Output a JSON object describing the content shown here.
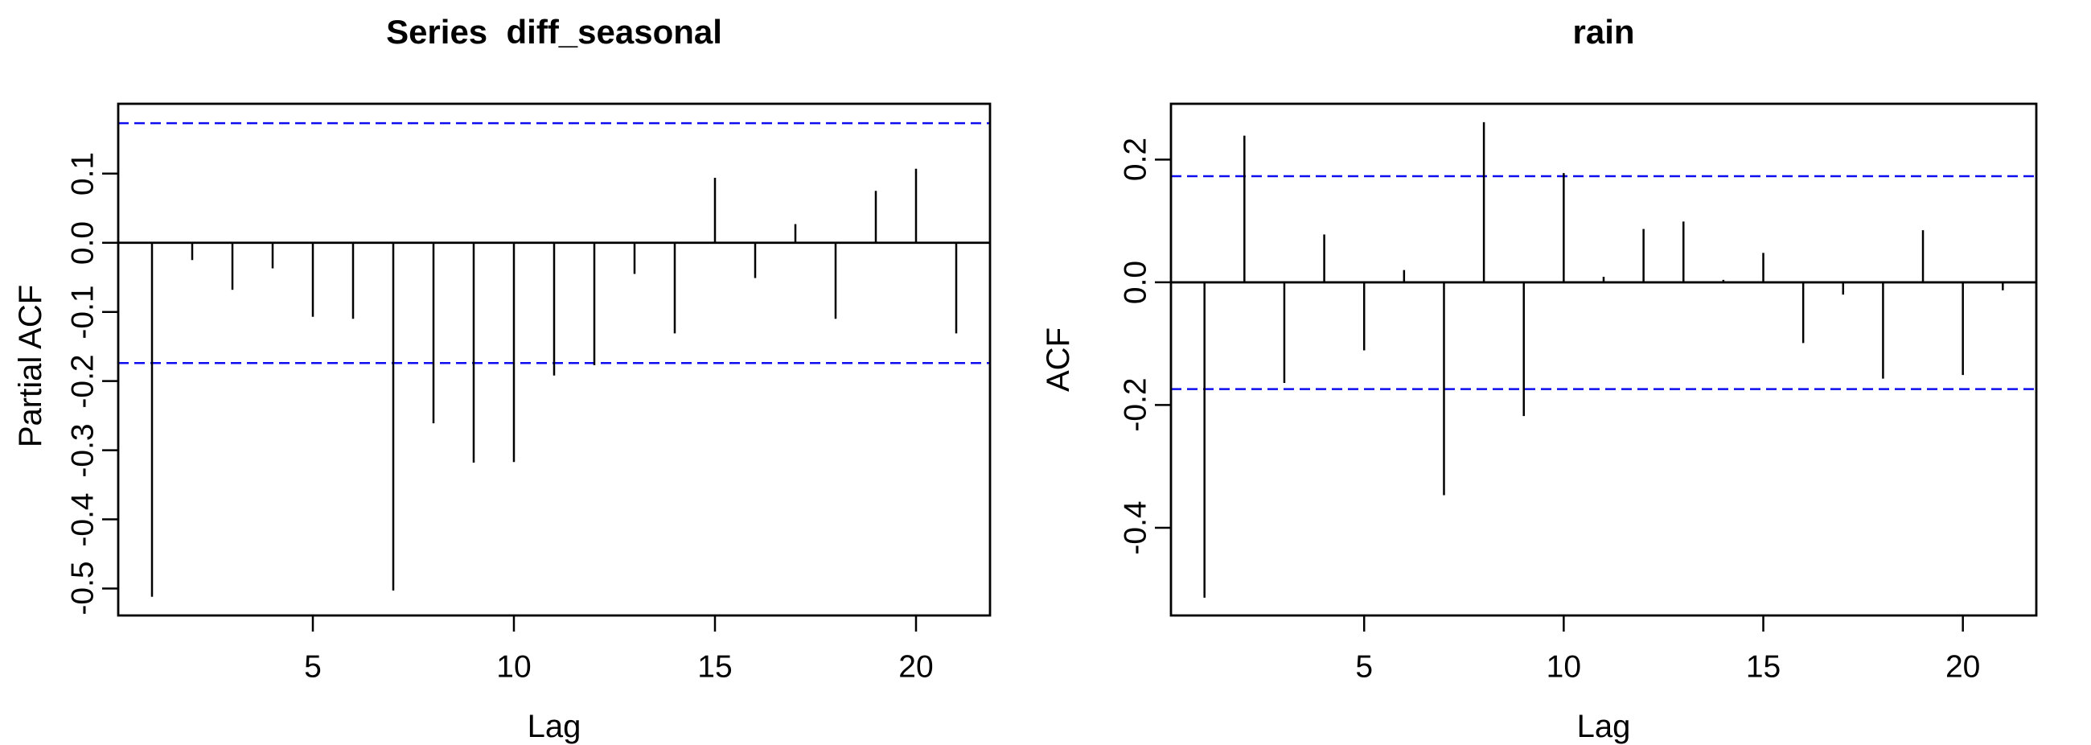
{
  "colors": {
    "background": "#ffffff",
    "bar": "#000000",
    "axis": "#000000",
    "text": "#000000",
    "confidence_line": "#0d0df0"
  },
  "chart_data": [
    {
      "type": "bar",
      "panel": "left",
      "title": "Series  diff_seasonal",
      "xlabel": "Lag",
      "ylabel": "Partial ACF",
      "bar_style": "stick",
      "grid": false,
      "legend": "none",
      "x": [
        1,
        2,
        3,
        4,
        5,
        6,
        7,
        8,
        9,
        10,
        11,
        12,
        13,
        14,
        15,
        16,
        17,
        18,
        19,
        20,
        21
      ],
      "values": [
        -0.512,
        -0.025,
        -0.068,
        -0.037,
        -0.107,
        -0.11,
        -0.503,
        -0.261,
        -0.318,
        -0.317,
        -0.192,
        -0.177,
        -0.045,
        -0.131,
        0.094,
        -0.051,
        0.027,
        -0.11,
        0.075,
        0.107,
        -0.131
      ],
      "confidence_bounds": [
        0.173,
        -0.174
      ],
      "xlim": [
        0.16,
        21.84
      ],
      "ylim": [
        -0.539,
        0.201
      ],
      "xticks": [
        {
          "value": 5,
          "label": "5"
        },
        {
          "value": 10,
          "label": "10"
        },
        {
          "value": 15,
          "label": "15"
        },
        {
          "value": 20,
          "label": "20"
        }
      ],
      "yticks": [
        {
          "value": 0.1,
          "label": "0.1"
        },
        {
          "value": 0.0,
          "label": "0.0"
        },
        {
          "value": -0.1,
          "label": "-0.1"
        },
        {
          "value": -0.2,
          "label": "-0.2"
        },
        {
          "value": -0.3,
          "label": "-0.3"
        },
        {
          "value": -0.4,
          "label": "-0.4"
        },
        {
          "value": -0.5,
          "label": "-0.5"
        }
      ]
    },
    {
      "type": "bar",
      "panel": "right",
      "title": "rain",
      "xlabel": "Lag",
      "ylabel": "ACF",
      "bar_style": "stick",
      "grid": false,
      "legend": "none",
      "x": [
        1,
        2,
        3,
        4,
        5,
        6,
        7,
        8,
        9,
        10,
        11,
        12,
        13,
        14,
        15,
        16,
        17,
        18,
        19,
        20,
        21
      ],
      "values": [
        -0.514,
        0.239,
        -0.164,
        0.078,
        -0.111,
        0.02,
        -0.347,
        0.261,
        -0.218,
        0.178,
        0.009,
        0.087,
        0.099,
        0.004,
        0.048,
        -0.099,
        -0.02,
        -0.157,
        0.085,
        -0.151,
        -0.013
      ],
      "confidence_bounds": [
        0.173,
        -0.174
      ],
      "xlim": [
        0.16,
        21.84
      ],
      "ylim": [
        -0.543,
        0.291
      ],
      "xticks": [
        {
          "value": 5,
          "label": "5"
        },
        {
          "value": 10,
          "label": "10"
        },
        {
          "value": 15,
          "label": "15"
        },
        {
          "value": 20,
          "label": "20"
        }
      ],
      "yticks": [
        {
          "value": 0.2,
          "label": "0.2"
        },
        {
          "value": 0.0,
          "label": "0.0"
        },
        {
          "value": -0.2,
          "label": "-0.2"
        },
        {
          "value": -0.4,
          "label": "-0.4"
        }
      ]
    }
  ]
}
